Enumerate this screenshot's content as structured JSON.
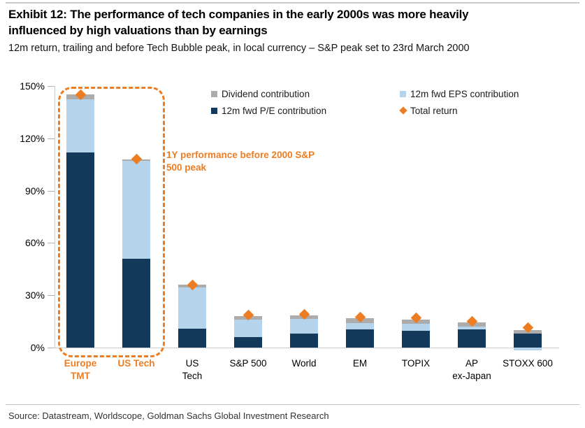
{
  "header": {
    "title": "Exhibit 12: The performance of tech companies in the early 2000s was more heavily\ninfluenced by high valuations than by earnings",
    "subtitle": "12m return, trailing and before Tech Bubble peak, in local currency – S&P peak set to 23rd March 2000"
  },
  "chart_data": {
    "type": "bar",
    "stacked": true,
    "title": "Exhibit 12: The performance of tech companies in the early 2000s was more heavily influenced by high valuations than by earnings",
    "subtitle": "12m return, trailing and before Tech Bubble peak, in local currency – S&P peak set to 23rd March 2000",
    "unit": "%",
    "ylim": [
      0,
      150
    ],
    "yticks": [
      "150%",
      "120%",
      "90%",
      "60%",
      "30%",
      "0%"
    ],
    "ytick_values": [
      150,
      120,
      90,
      60,
      30,
      0
    ],
    "grid": false,
    "legend_position": "top",
    "categories": [
      "Europe TMT",
      "US Tech",
      "US Tech",
      "S&P 500",
      "World",
      "EM",
      "TOPIX",
      "AP ex-Japan",
      "STOXX 600"
    ],
    "category_label_lines": [
      [
        "Europe",
        "TMT"
      ],
      [
        "US Tech"
      ],
      [
        "US",
        "Tech"
      ],
      [
        "S&P 500"
      ],
      [
        "World"
      ],
      [
        "EM"
      ],
      [
        "TOPIX"
      ],
      [
        "AP",
        "ex-Japan"
      ],
      [
        "STOXX 600"
      ]
    ],
    "highlight_count": 2,
    "series": [
      {
        "name": "12m fwd P/E contribution",
        "role": "pe",
        "color": "#133A5B",
        "values": [
          112,
          51,
          11,
          6,
          8,
          10.5,
          9.5,
          10.5,
          8
        ]
      },
      {
        "name": "12m fwd EPS contribution",
        "role": "eps",
        "color": "#B5D4EC",
        "values": [
          30.5,
          56,
          23.5,
          10,
          8.5,
          3.5,
          4,
          1.5,
          -1.5
        ]
      },
      {
        "name": "Dividend contribution",
        "role": "div",
        "color": "#ACACAC",
        "values": [
          2.5,
          1,
          1.5,
          2,
          2,
          3,
          2.5,
          2.5,
          2
        ]
      },
      {
        "name": "Total return",
        "role": "total",
        "marker": "diamond",
        "color": "#ED7D23",
        "values": [
          145,
          108,
          36,
          18.5,
          19,
          17.5,
          17,
          15,
          11.5
        ]
      }
    ],
    "legend": [
      {
        "label": "Dividend contribution",
        "swatch": "square",
        "color": "#ACACAC"
      },
      {
        "label": "12m fwd EPS contribution",
        "swatch": "square",
        "color": "#B5D4EC"
      },
      {
        "label": "12m fwd P/E contribution",
        "swatch": "square",
        "color": "#133A5B"
      },
      {
        "label": "Total return",
        "swatch": "diamond",
        "color": "#ED7D23"
      }
    ],
    "annotation": "1Y performance before 2000 S&P\n500 peak"
  },
  "colors": {
    "pe_navy": "#133A5B",
    "eps_lightblue": "#B5D4EC",
    "dividend_gray": "#ACACAC",
    "accent_orange": "#ED7D23",
    "axis_gray": "#CCCCCC"
  },
  "footer": {
    "source": "Source: Datastream, Worldscope, Goldman Sachs Global Investment Research"
  }
}
